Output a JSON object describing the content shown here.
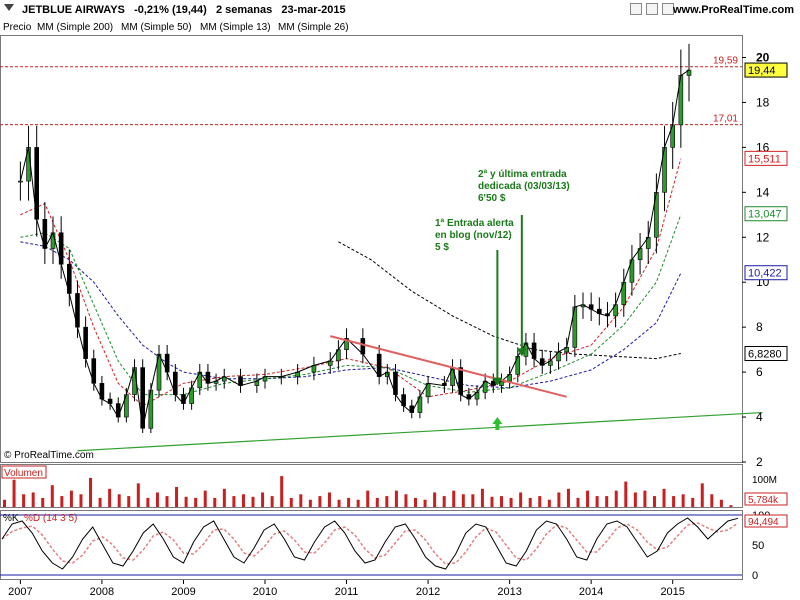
{
  "header": {
    "title": "JETBLUE AIRWAYS   -0,21% (19,44)   2 semanas   23-mar-2015",
    "site": "www.ProRealTime.com"
  },
  "legend": [
    {
      "label": "Precio",
      "color": "#000000"
    },
    {
      "label": "MM (Simple 200)",
      "color": "#000000"
    },
    {
      "label": "MM (Simple 50)",
      "color": "#1a1aa6"
    },
    {
      "label": "MM (Simple 13)",
      "color": "#d42020"
    },
    {
      "label": "MM (Simple 26)",
      "color": "#1e8a2e"
    }
  ],
  "copyright": "© ProRealTime.com",
  "annotations": {
    "first_entry": [
      "1ª Entrada alerta",
      "en blog (nov/12)",
      "5 $"
    ],
    "second_entry": [
      "2ª y última entrada",
      "dedicada (03/03/13)",
      "6'50 $"
    ]
  },
  "price_levels": {
    "resistance_high": "19,59",
    "resistance_low": "17,01",
    "last": "19,44"
  },
  "ma_labels": {
    "ma13": "15,511",
    "ma26": "13,047",
    "ma50": "10,422",
    "ma200": "6,8280"
  },
  "price_axis_ticks": [
    "20",
    "18",
    "16",
    "14",
    "12",
    "10",
    "8",
    "6",
    "4",
    "2"
  ],
  "volume_panel": {
    "title": "Volumen",
    "tick": "100M",
    "last": "5,784k"
  },
  "stoch_panel": {
    "title_k": "%K",
    "title_d": "%D (14 3 5)",
    "ticks": [
      "100",
      "50",
      "0"
    ],
    "last": "94,494"
  },
  "x_axis_years": [
    "2007",
    "2008",
    "2009",
    "2010",
    "2011",
    "2012",
    "2013",
    "2014",
    "2015"
  ],
  "chart_data": {
    "type": "line",
    "title": "JETBLUE AIRWAYS",
    "x_unit": "year",
    "y_range": [
      2,
      21
    ],
    "price": {
      "x": [
        2007.0,
        2007.1,
        2007.2,
        2007.3,
        2007.4,
        2007.5,
        2007.6,
        2007.7,
        2007.8,
        2007.9,
        2008.0,
        2008.1,
        2008.2,
        2008.3,
        2008.4,
        2008.5,
        2008.6,
        2008.7,
        2008.8,
        2008.9,
        2009.0,
        2009.1,
        2009.2,
        2009.3,
        2009.4,
        2009.5,
        2009.7,
        2009.9,
        2010.0,
        2010.2,
        2010.4,
        2010.6,
        2010.8,
        2010.9,
        2011.0,
        2011.2,
        2011.4,
        2011.5,
        2011.6,
        2011.7,
        2011.8,
        2011.9,
        2012.0,
        2012.2,
        2012.3,
        2012.4,
        2012.5,
        2012.6,
        2012.7,
        2012.8,
        2012.9,
        2013.0,
        2013.1,
        2013.2,
        2013.3,
        2013.4,
        2013.5,
        2013.6,
        2013.7,
        2013.8,
        2013.9,
        2014.0,
        2014.1,
        2014.2,
        2014.3,
        2014.4,
        2014.5,
        2014.6,
        2014.7,
        2014.8,
        2014.9,
        2015.0,
        2015.1,
        2015.2
      ],
      "close": [
        14.5,
        16.0,
        12.8,
        11.5,
        12.2,
        10.8,
        9.5,
        8.0,
        6.6,
        5.5,
        4.8,
        4.6,
        4.0,
        5.0,
        6.2,
        3.5,
        5.2,
        6.8,
        6.0,
        5.0,
        4.6,
        5.3,
        6.0,
        5.5,
        5.6,
        5.8,
        5.4,
        5.6,
        5.8,
        5.8,
        6.0,
        6.3,
        6.5,
        7.0,
        7.5,
        6.8,
        5.8,
        6.0,
        5.0,
        4.5,
        4.2,
        4.9,
        5.5,
        5.4,
        6.2,
        5.0,
        4.8,
        5.1,
        5.6,
        5.4,
        5.6,
        5.9,
        6.7,
        7.3,
        6.6,
        6.3,
        6.5,
        6.9,
        7.1,
        8.9,
        9.0,
        8.8,
        8.6,
        8.5,
        9.0,
        10.0,
        11.0,
        11.5,
        12.0,
        14.0,
        16.0,
        17.0,
        19.2,
        19.44
      ]
    },
    "ma13": {
      "x": [
        2007.0,
        2007.3,
        2007.6,
        2007.9,
        2008.2,
        2008.5,
        2009.0,
        2009.5,
        2010.0,
        2010.5,
        2011.0,
        2011.5,
        2012.0,
        2012.5,
        2013.0,
        2013.5,
        2014.0,
        2014.4,
        2014.8,
        2015.1
      ],
      "y": [
        13.0,
        13.5,
        11.0,
        8.0,
        5.5,
        4.5,
        5.5,
        5.8,
        5.9,
        6.2,
        6.6,
        6.2,
        4.9,
        5.2,
        5.6,
        6.6,
        7.2,
        8.9,
        11.5,
        15.5
      ]
    },
    "ma26": {
      "x": [
        2007.0,
        2007.3,
        2007.6,
        2007.9,
        2008.2,
        2008.5,
        2009.0,
        2009.5,
        2010.0,
        2010.5,
        2011.0,
        2011.5,
        2012.0,
        2012.5,
        2013.0,
        2013.5,
        2014.0,
        2014.4,
        2014.8,
        2015.1
      ],
      "y": [
        12.0,
        12.2,
        11.5,
        9.0,
        6.5,
        5.0,
        5.0,
        5.5,
        5.7,
        5.9,
        6.3,
        6.2,
        5.4,
        5.1,
        5.3,
        6.0,
        6.8,
        8.1,
        10.0,
        13.0
      ]
    },
    "ma50": {
      "x": [
        2007.0,
        2007.3,
        2007.6,
        2007.9,
        2008.2,
        2008.5,
        2008.8,
        2009.0,
        2009.5,
        2010.0,
        2010.5,
        2011.0,
        2011.5,
        2012.0,
        2012.5,
        2013.0,
        2013.5,
        2014.0,
        2014.4,
        2014.8,
        2015.1
      ],
      "y": [
        11.8,
        11.6,
        11.0,
        10.0,
        8.5,
        7.2,
        6.4,
        6.0,
        5.7,
        5.7,
        5.8,
        6.1,
        6.2,
        5.8,
        5.4,
        5.3,
        5.6,
        6.1,
        7.0,
        8.2,
        10.4
      ]
    },
    "ma200": {
      "x": [
        2010.9,
        2011.3,
        2011.8,
        2012.3,
        2012.8,
        2013.3,
        2013.8,
        2014.3,
        2014.8,
        2015.1
      ],
      "y": [
        11.8,
        11.0,
        9.6,
        8.5,
        7.6,
        7.0,
        6.8,
        6.7,
        6.6,
        6.83
      ]
    },
    "levels": [
      19.59,
      17.01
    ],
    "trendline_red": {
      "x": [
        2010.8,
        2013.7
      ],
      "y": [
        7.6,
        4.9
      ]
    },
    "trendline_green": {
      "x": [
        2007.7,
        2016.1
      ],
      "y": [
        2.5,
        4.2
      ]
    },
    "arrows_down": [
      {
        "x": 2012.85,
        "y": 5.4
      },
      {
        "x": 2013.15,
        "y": 6.7
      }
    ],
    "arrow_up": {
      "x": 2012.85,
      "y": 3.6
    },
    "volume_millions": [
      20,
      75,
      35,
      40,
      25,
      60,
      30,
      45,
      35,
      80,
      25,
      50,
      35,
      30,
      65,
      25,
      40,
      30,
      55,
      28,
      25,
      45,
      25,
      50,
      30,
      35,
      28,
      40,
      30,
      85,
      25,
      35,
      20,
      30,
      40,
      20,
      25,
      20,
      45,
      25,
      30,
      45,
      35,
      25,
      20,
      40,
      30,
      45,
      35,
      35,
      50,
      28,
      30,
      25,
      40,
      25,
      30,
      20,
      40,
      50,
      25,
      45,
      30,
      30,
      45,
      70,
      40,
      45,
      30,
      50,
      30,
      35,
      25,
      65,
      35,
      20,
      5
    ],
    "stoch_k": [
      60,
      85,
      90,
      70,
      40,
      20,
      10,
      30,
      60,
      80,
      50,
      20,
      15,
      40,
      70,
      85,
      60,
      30,
      20,
      55,
      80,
      90,
      60,
      30,
      20,
      45,
      75,
      85,
      60,
      30,
      25,
      55,
      80,
      90,
      70,
      40,
      20,
      25,
      55,
      80,
      85,
      60,
      30,
      15,
      10,
      35,
      70,
      85,
      80,
      50,
      20,
      15,
      40,
      75,
      90,
      85,
      60,
      30,
      25,
      60,
      85,
      90,
      80,
      55,
      30,
      40,
      70,
      85,
      95,
      80,
      60,
      75,
      90,
      94.5
    ]
  }
}
